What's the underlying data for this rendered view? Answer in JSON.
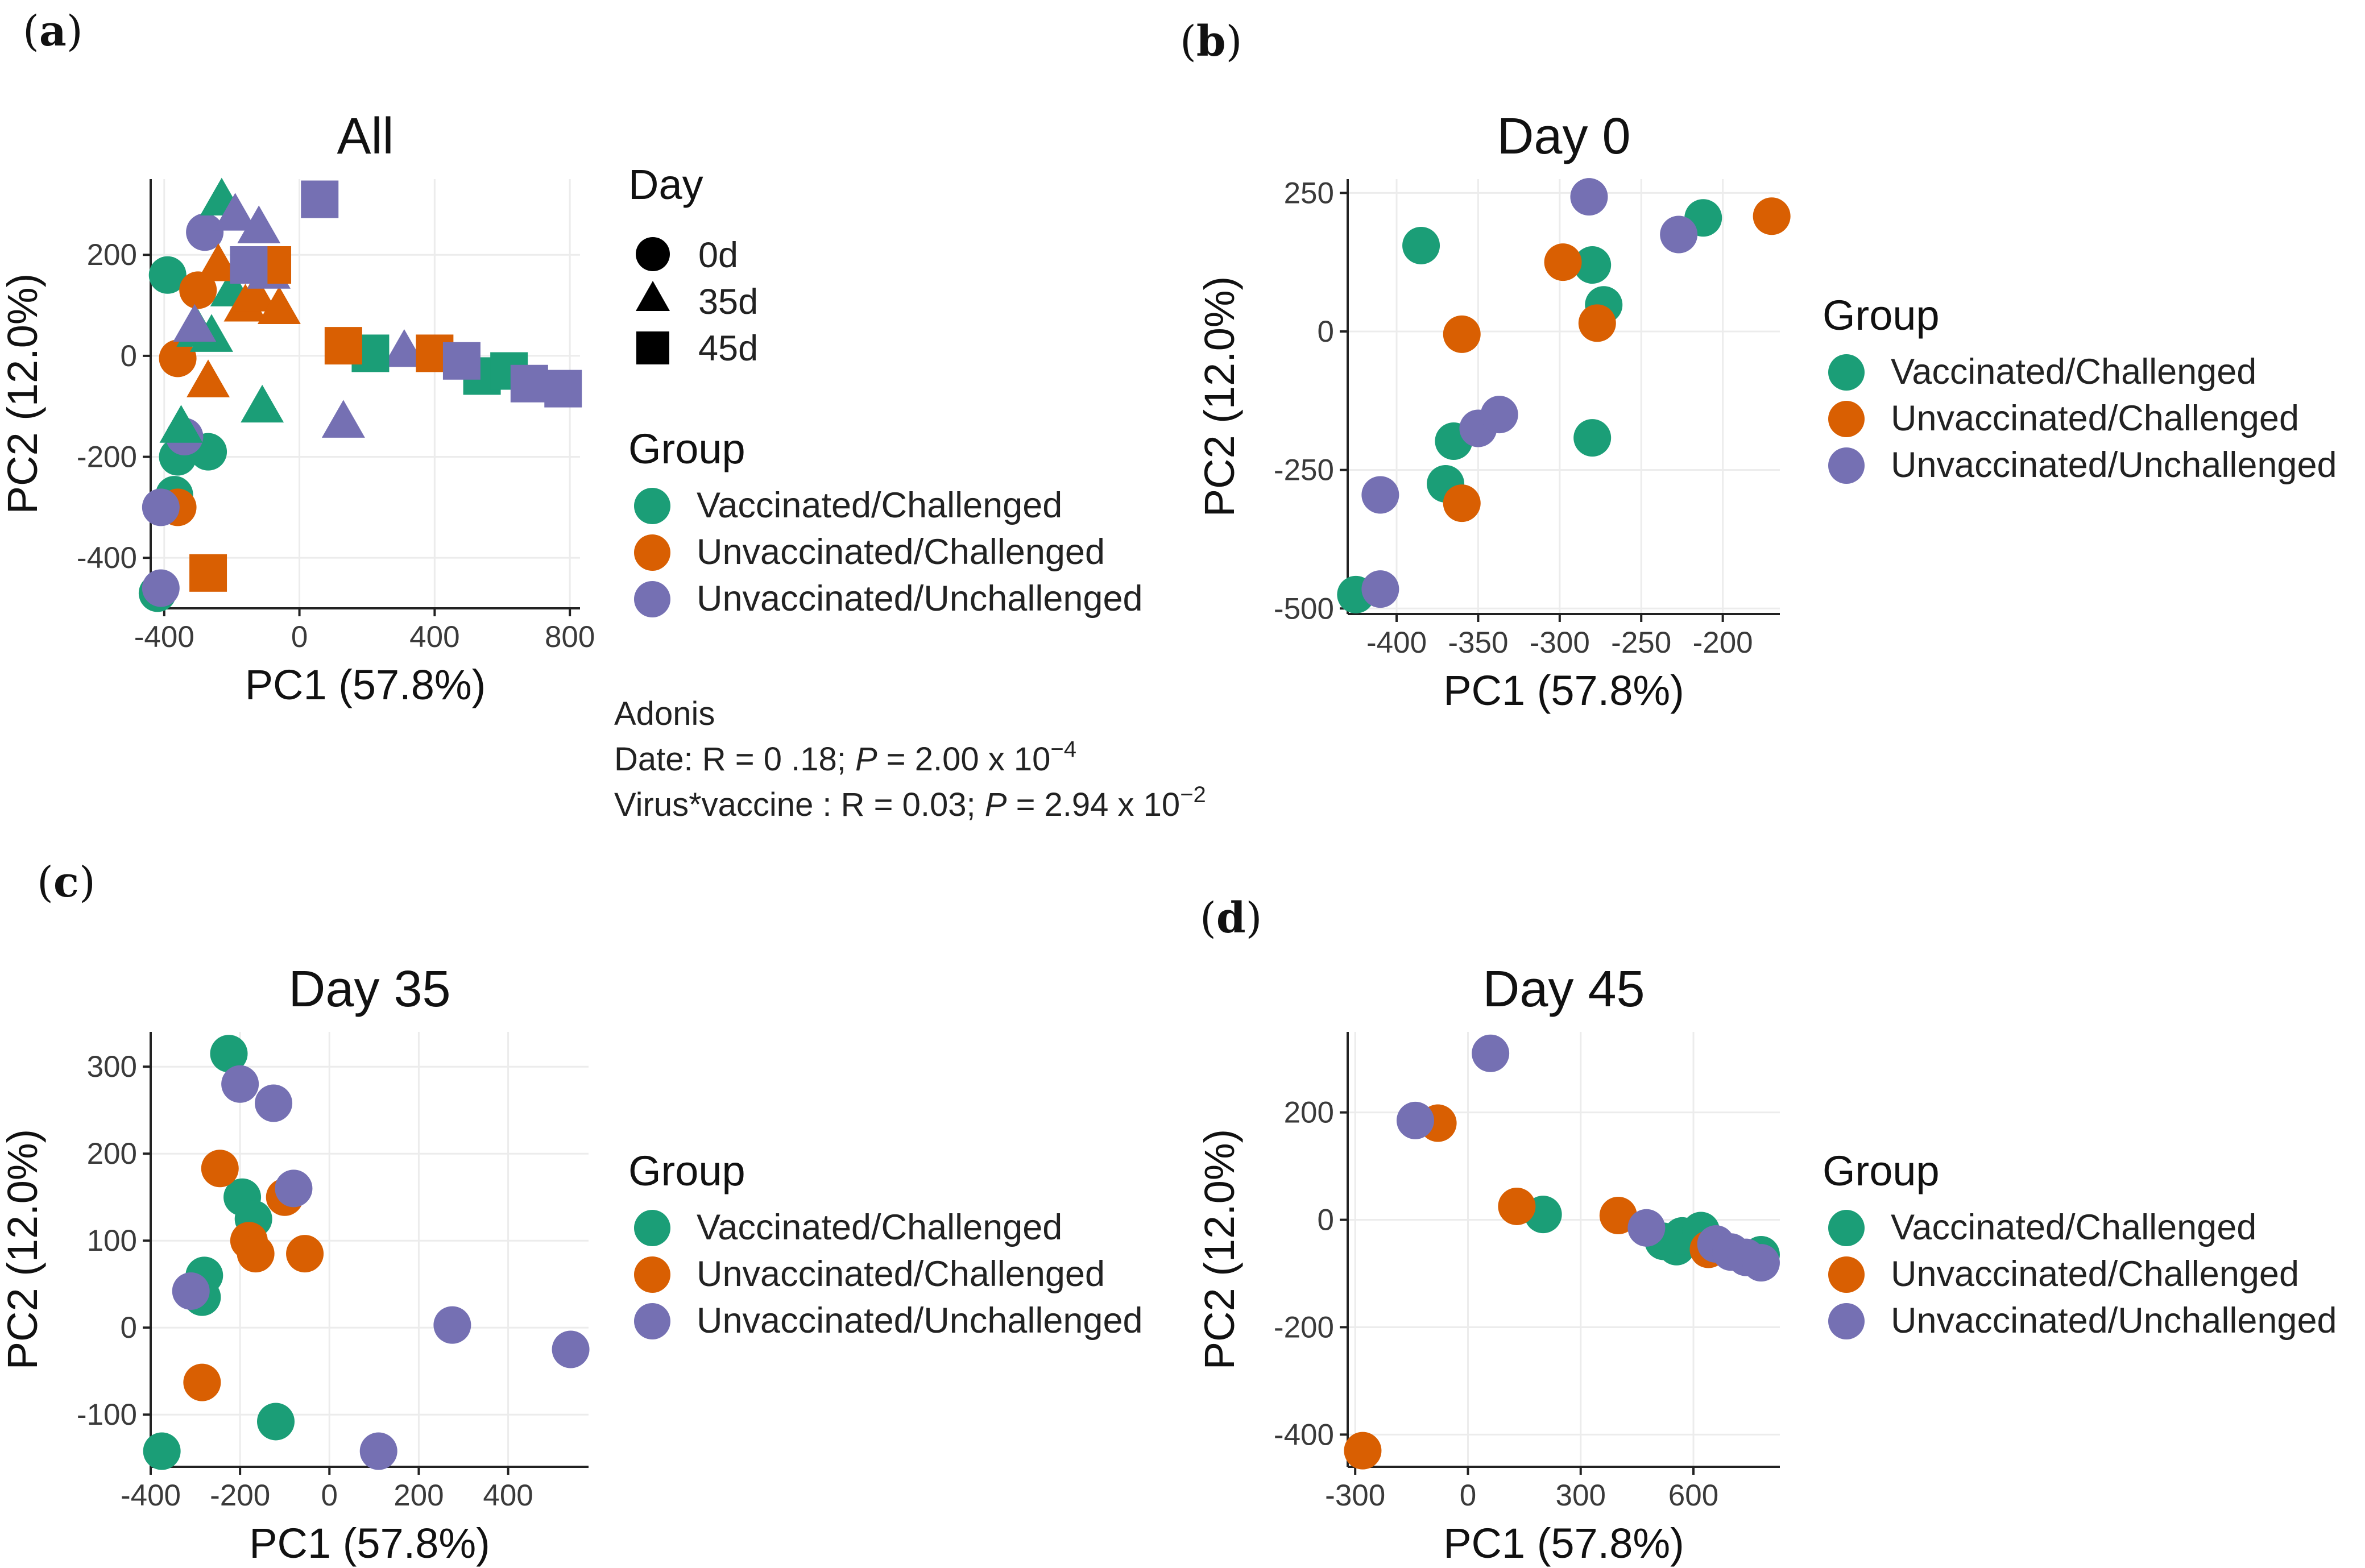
{
  "colors": {
    "Vaccinated/Challenged": "#1b9e77",
    "Unvaccinated/Challenged": "#d95f02",
    "Unvaccinated/Unchallenged": "#7570b3"
  },
  "legend": {
    "group_title": "Group",
    "day_title": "Day",
    "groups": [
      "Vaccinated/Challenged",
      "Unvaccinated/Challenged",
      "Unvaccinated/Unchallenged"
    ],
    "days": [
      "0d",
      "35d",
      "45d"
    ]
  },
  "adonis": {
    "title": "Adonis",
    "date_prefix": "Date: R  = 0 .18; ",
    "date_p": "P",
    "date_value": " = 2.00 x 10",
    "date_exp": "−4",
    "virus_prefix": "Virus*vaccine : R  = 0.03; ",
    "virus_p": "P",
    "virus_value": " = 2.94 x 10",
    "virus_exp": "−2"
  },
  "chart_data": [
    {
      "panel": "a",
      "type": "scatter",
      "title": "All",
      "xlabel": "PC1 (57.8%)",
      "ylabel": "PC2 (12.0%)",
      "xlim": [
        -440,
        830
      ],
      "ylim": [
        -500,
        350
      ],
      "xticks": [
        -400,
        0,
        400,
        800
      ],
      "yticks": [
        -400,
        -200,
        0,
        200
      ],
      "points": [
        {
          "x": -420,
          "y": -470,
          "g": "Vaccinated/Challenged",
          "d": "0d"
        },
        {
          "x": -360,
          "y": -200,
          "g": "Vaccinated/Challenged",
          "d": "0d"
        },
        {
          "x": -390,
          "y": 160,
          "g": "Vaccinated/Challenged",
          "d": "0d"
        },
        {
          "x": -270,
          "y": -190,
          "g": "Vaccinated/Challenged",
          "d": "0d"
        },
        {
          "x": -370,
          "y": -275,
          "g": "Vaccinated/Challenged",
          "d": "0d"
        },
        {
          "x": -360,
          "y": -300,
          "g": "Unvaccinated/Challenged",
          "d": "0d"
        },
        {
          "x": -360,
          "y": -5,
          "g": "Unvaccinated/Challenged",
          "d": "0d"
        },
        {
          "x": -300,
          "y": 130,
          "g": "Unvaccinated/Challenged",
          "d": "0d"
        },
        {
          "x": -410,
          "y": -460,
          "g": "Unvaccinated/Unchallenged",
          "d": "0d"
        },
        {
          "x": -410,
          "y": -300,
          "g": "Unvaccinated/Unchallenged",
          "d": "0d"
        },
        {
          "x": -340,
          "y": -160,
          "g": "Unvaccinated/Unchallenged",
          "d": "0d"
        },
        {
          "x": -280,
          "y": 245,
          "g": "Unvaccinated/Unchallenged",
          "d": "0d"
        },
        {
          "x": -230,
          "y": 310,
          "g": "Vaccinated/Challenged",
          "d": "35d"
        },
        {
          "x": -350,
          "y": -140,
          "g": "Vaccinated/Challenged",
          "d": "35d"
        },
        {
          "x": -300,
          "y": 50,
          "g": "Vaccinated/Challenged",
          "d": "35d"
        },
        {
          "x": -260,
          "y": 40,
          "g": "Vaccinated/Challenged",
          "d": "35d"
        },
        {
          "x": -200,
          "y": 130,
          "g": "Vaccinated/Challenged",
          "d": "35d"
        },
        {
          "x": -110,
          "y": -100,
          "g": "Vaccinated/Challenged",
          "d": "35d"
        },
        {
          "x": -270,
          "y": -50,
          "g": "Unvaccinated/Challenged",
          "d": "35d"
        },
        {
          "x": -240,
          "y": 180,
          "g": "Unvaccinated/Challenged",
          "d": "35d"
        },
        {
          "x": -160,
          "y": 100,
          "g": "Unvaccinated/Challenged",
          "d": "35d"
        },
        {
          "x": -130,
          "y": 120,
          "g": "Unvaccinated/Challenged",
          "d": "35d"
        },
        {
          "x": -60,
          "y": 95,
          "g": "Unvaccinated/Challenged",
          "d": "35d"
        },
        {
          "x": -190,
          "y": 280,
          "g": "Unvaccinated/Unchallenged",
          "d": "35d"
        },
        {
          "x": -120,
          "y": 255,
          "g": "Unvaccinated/Unchallenged",
          "d": "35d"
        },
        {
          "x": -310,
          "y": 60,
          "g": "Unvaccinated/Unchallenged",
          "d": "35d"
        },
        {
          "x": -90,
          "y": 165,
          "g": "Unvaccinated/Unchallenged",
          "d": "35d"
        },
        {
          "x": 130,
          "y": -130,
          "g": "Unvaccinated/Unchallenged",
          "d": "35d"
        },
        {
          "x": 310,
          "y": 10,
          "g": "Unvaccinated/Unchallenged",
          "d": "35d"
        },
        {
          "x": 210,
          "y": 5,
          "g": "Vaccinated/Challenged",
          "d": "45d"
        },
        {
          "x": 540,
          "y": -40,
          "g": "Vaccinated/Challenged",
          "d": "45d"
        },
        {
          "x": 620,
          "y": -30,
          "g": "Vaccinated/Challenged",
          "d": "45d"
        },
        {
          "x": -270,
          "y": -430,
          "g": "Unvaccinated/Challenged",
          "d": "45d"
        },
        {
          "x": -80,
          "y": 180,
          "g": "Unvaccinated/Challenged",
          "d": "45d"
        },
        {
          "x": 130,
          "y": 20,
          "g": "Unvaccinated/Challenged",
          "d": "45d"
        },
        {
          "x": 400,
          "y": 5,
          "g": "Unvaccinated/Challenged",
          "d": "45d"
        },
        {
          "x": 60,
          "y": 310,
          "g": "Unvaccinated/Unchallenged",
          "d": "45d"
        },
        {
          "x": -150,
          "y": 180,
          "g": "Unvaccinated/Unchallenged",
          "d": "45d"
        },
        {
          "x": 480,
          "y": -10,
          "g": "Unvaccinated/Unchallenged",
          "d": "45d"
        },
        {
          "x": 680,
          "y": -55,
          "g": "Unvaccinated/Unchallenged",
          "d": "45d"
        },
        {
          "x": 780,
          "y": -65,
          "g": "Unvaccinated/Unchallenged",
          "d": "45d"
        }
      ]
    },
    {
      "panel": "b",
      "type": "scatter",
      "title": "Day 0",
      "xlabel": "PC1 (57.8%)",
      "ylabel": "PC2 (12.0%)",
      "xlim": [
        -430,
        -165
      ],
      "ylim": [
        -510,
        275
      ],
      "xticks": [
        -400,
        -350,
        -300,
        -250,
        -200
      ],
      "yticks": [
        -500,
        -250,
        0,
        250
      ],
      "points": [
        {
          "x": -385,
          "y": 155,
          "g": "Vaccinated/Challenged"
        },
        {
          "x": -280,
          "y": 120,
          "g": "Vaccinated/Challenged"
        },
        {
          "x": -273,
          "y": 48,
          "g": "Vaccinated/Challenged"
        },
        {
          "x": -212,
          "y": 205,
          "g": "Vaccinated/Challenged"
        },
        {
          "x": -365,
          "y": -198,
          "g": "Vaccinated/Challenged"
        },
        {
          "x": -370,
          "y": -275,
          "g": "Vaccinated/Challenged"
        },
        {
          "x": -280,
          "y": -192,
          "g": "Vaccinated/Challenged"
        },
        {
          "x": -425,
          "y": -475,
          "g": "Vaccinated/Challenged"
        },
        {
          "x": -298,
          "y": 125,
          "g": "Unvaccinated/Challenged"
        },
        {
          "x": -360,
          "y": -5,
          "g": "Unvaccinated/Challenged"
        },
        {
          "x": -277,
          "y": 15,
          "g": "Unvaccinated/Challenged"
        },
        {
          "x": -360,
          "y": -310,
          "g": "Unvaccinated/Challenged"
        },
        {
          "x": -170,
          "y": 208,
          "g": "Unvaccinated/Challenged"
        },
        {
          "x": -282,
          "y": 243,
          "g": "Unvaccinated/Unchallenged"
        },
        {
          "x": -227,
          "y": 175,
          "g": "Unvaccinated/Unchallenged"
        },
        {
          "x": -350,
          "y": -175,
          "g": "Unvaccinated/Unchallenged"
        },
        {
          "x": -337,
          "y": -150,
          "g": "Unvaccinated/Unchallenged"
        },
        {
          "x": -410,
          "y": -295,
          "g": "Unvaccinated/Unchallenged"
        },
        {
          "x": -410,
          "y": -465,
          "g": "Unvaccinated/Unchallenged"
        }
      ]
    },
    {
      "panel": "c",
      "type": "scatter",
      "title": "Day 35",
      "xlabel": "PC1 (57.8%)",
      "ylabel": "PC2 (12.0%)",
      "xlim": [
        -400,
        580
      ],
      "ylim": [
        -160,
        340
      ],
      "xticks": [
        -400,
        -200,
        0,
        200,
        400
      ],
      "yticks": [
        -100,
        0,
        100,
        200,
        300
      ],
      "points": [
        {
          "x": -225,
          "y": 315,
          "g": "Vaccinated/Challenged"
        },
        {
          "x": -195,
          "y": 150,
          "g": "Vaccinated/Challenged"
        },
        {
          "x": -170,
          "y": 125,
          "g": "Vaccinated/Challenged"
        },
        {
          "x": -280,
          "y": 60,
          "g": "Vaccinated/Challenged"
        },
        {
          "x": -285,
          "y": 35,
          "g": "Vaccinated/Challenged"
        },
        {
          "x": -120,
          "y": -108,
          "g": "Vaccinated/Challenged"
        },
        {
          "x": -375,
          "y": -142,
          "g": "Vaccinated/Challenged"
        },
        {
          "x": -245,
          "y": 183,
          "g": "Unvaccinated/Challenged"
        },
        {
          "x": -100,
          "y": 150,
          "g": "Unvaccinated/Challenged"
        },
        {
          "x": -180,
          "y": 100,
          "g": "Unvaccinated/Challenged"
        },
        {
          "x": -165,
          "y": 85,
          "g": "Unvaccinated/Challenged"
        },
        {
          "x": -55,
          "y": 85,
          "g": "Unvaccinated/Challenged"
        },
        {
          "x": -285,
          "y": -63,
          "g": "Unvaccinated/Challenged"
        },
        {
          "x": -200,
          "y": 280,
          "g": "Unvaccinated/Unchallenged"
        },
        {
          "x": -125,
          "y": 258,
          "g": "Unvaccinated/Unchallenged"
        },
        {
          "x": -80,
          "y": 160,
          "g": "Unvaccinated/Unchallenged"
        },
        {
          "x": -310,
          "y": 42,
          "g": "Unvaccinated/Unchallenged"
        },
        {
          "x": 275,
          "y": 3,
          "g": "Unvaccinated/Unchallenged"
        },
        {
          "x": 540,
          "y": -25,
          "g": "Unvaccinated/Unchallenged"
        },
        {
          "x": 110,
          "y": -142,
          "g": "Unvaccinated/Unchallenged"
        }
      ]
    },
    {
      "panel": "d",
      "type": "scatter",
      "title": "Day 45",
      "xlabel": "PC1 (57.8%)",
      "ylabel": "PC2 (12.0%)",
      "xlim": [
        -320,
        830
      ],
      "ylim": [
        -460,
        350
      ],
      "xticks": [
        -300,
        0,
        300,
        600
      ],
      "yticks": [
        -400,
        -200,
        0,
        200
      ],
      "points": [
        {
          "x": 200,
          "y": 10,
          "g": "Vaccinated/Challenged"
        },
        {
          "x": 520,
          "y": -40,
          "g": "Vaccinated/Challenged"
        },
        {
          "x": 555,
          "y": -50,
          "g": "Vaccinated/Challenged"
        },
        {
          "x": 570,
          "y": -30,
          "g": "Vaccinated/Challenged"
        },
        {
          "x": 620,
          "y": -20,
          "g": "Vaccinated/Challenged"
        },
        {
          "x": 780,
          "y": -65,
          "g": "Vaccinated/Challenged"
        },
        {
          "x": -280,
          "y": -430,
          "g": "Unvaccinated/Challenged"
        },
        {
          "x": -80,
          "y": 180,
          "g": "Unvaccinated/Challenged"
        },
        {
          "x": 130,
          "y": 25,
          "g": "Unvaccinated/Challenged"
        },
        {
          "x": 400,
          "y": 8,
          "g": "Unvaccinated/Challenged"
        },
        {
          "x": 640,
          "y": -55,
          "g": "Unvaccinated/Challenged"
        },
        {
          "x": 60,
          "y": 310,
          "g": "Unvaccinated/Unchallenged"
        },
        {
          "x": -140,
          "y": 185,
          "g": "Unvaccinated/Unchallenged"
        },
        {
          "x": 475,
          "y": -15,
          "g": "Unvaccinated/Unchallenged"
        },
        {
          "x": 660,
          "y": -45,
          "g": "Unvaccinated/Unchallenged"
        },
        {
          "x": 700,
          "y": -60,
          "g": "Unvaccinated/Unchallenged"
        },
        {
          "x": 740,
          "y": -70,
          "g": "Unvaccinated/Unchallenged"
        },
        {
          "x": 780,
          "y": -80,
          "g": "Unvaccinated/Unchallenged"
        }
      ]
    }
  ]
}
